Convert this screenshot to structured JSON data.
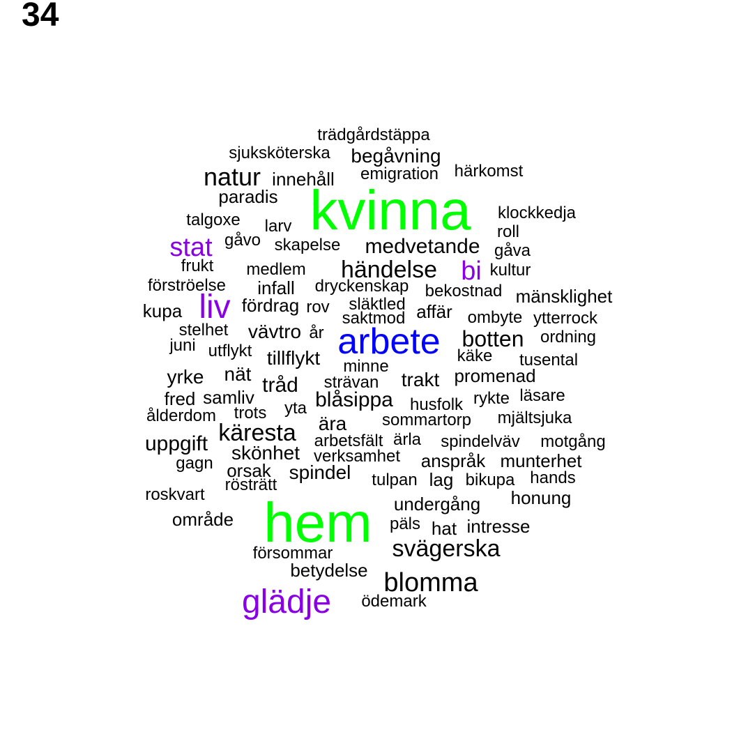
{
  "page_number": "34",
  "colors": {
    "tier1": "#00ff00",
    "tier2": "#0000ff",
    "tier3": "#8a00e6",
    "normal": "#000000"
  },
  "words": [
    {
      "text": "trädgårdstäppa",
      "color": "normal"
    },
    {
      "text": "sjuksköterska",
      "color": "normal"
    },
    {
      "text": "begåvning",
      "color": "normal"
    },
    {
      "text": "natur",
      "color": "normal"
    },
    {
      "text": "innehåll",
      "color": "normal"
    },
    {
      "text": "emigration",
      "color": "normal"
    },
    {
      "text": "härkomst",
      "color": "normal"
    },
    {
      "text": "paradis",
      "color": "normal"
    },
    {
      "text": "kvinna",
      "color": "tier1"
    },
    {
      "text": "klockkedja",
      "color": "normal"
    },
    {
      "text": "talgoxe",
      "color": "normal"
    },
    {
      "text": "larv",
      "color": "normal"
    },
    {
      "text": "roll",
      "color": "normal"
    },
    {
      "text": "stat",
      "color": "tier3"
    },
    {
      "text": "gåvo",
      "color": "normal"
    },
    {
      "text": "skapelse",
      "color": "normal"
    },
    {
      "text": "medvetande",
      "color": "normal"
    },
    {
      "text": "gåva",
      "color": "normal"
    },
    {
      "text": "frukt",
      "color": "normal"
    },
    {
      "text": "medlem",
      "color": "normal"
    },
    {
      "text": "händelse",
      "color": "normal"
    },
    {
      "text": "bi",
      "color": "tier3"
    },
    {
      "text": "kultur",
      "color": "normal"
    },
    {
      "text": "förströelse",
      "color": "normal"
    },
    {
      "text": "infall",
      "color": "normal"
    },
    {
      "text": "dryckenskap",
      "color": "normal"
    },
    {
      "text": "bekostnad",
      "color": "normal"
    },
    {
      "text": "mänsklighet",
      "color": "normal"
    },
    {
      "text": "kupa",
      "color": "normal"
    },
    {
      "text": "liv",
      "color": "tier3"
    },
    {
      "text": "fördrag",
      "color": "normal"
    },
    {
      "text": "rov",
      "color": "normal"
    },
    {
      "text": "släktled",
      "color": "normal"
    },
    {
      "text": "affär",
      "color": "normal"
    },
    {
      "text": "saktmod",
      "color": "normal"
    },
    {
      "text": "ombyte",
      "color": "normal"
    },
    {
      "text": "ytterrock",
      "color": "normal"
    },
    {
      "text": "stelhet",
      "color": "normal"
    },
    {
      "text": "vävtro",
      "color": "normal"
    },
    {
      "text": "år",
      "color": "normal"
    },
    {
      "text": "arbete",
      "color": "tier2"
    },
    {
      "text": "botten",
      "color": "normal"
    },
    {
      "text": "ordning",
      "color": "normal"
    },
    {
      "text": "juni",
      "color": "normal"
    },
    {
      "text": "utflykt",
      "color": "normal"
    },
    {
      "text": "tillflykt",
      "color": "normal"
    },
    {
      "text": "käke",
      "color": "normal"
    },
    {
      "text": "tusental",
      "color": "normal"
    },
    {
      "text": "minne",
      "color": "normal"
    },
    {
      "text": "yrke",
      "color": "normal"
    },
    {
      "text": "nät",
      "color": "normal"
    },
    {
      "text": "tråd",
      "color": "normal"
    },
    {
      "text": "strävan",
      "color": "normal"
    },
    {
      "text": "trakt",
      "color": "normal"
    },
    {
      "text": "promenad",
      "color": "normal"
    },
    {
      "text": "fred",
      "color": "normal"
    },
    {
      "text": "samliv",
      "color": "normal"
    },
    {
      "text": "blåsippa",
      "color": "normal"
    },
    {
      "text": "rykte",
      "color": "normal"
    },
    {
      "text": "läsare",
      "color": "normal"
    },
    {
      "text": "yta",
      "color": "normal"
    },
    {
      "text": "husfolk",
      "color": "normal"
    },
    {
      "text": "ålderdom",
      "color": "normal"
    },
    {
      "text": "trots",
      "color": "normal"
    },
    {
      "text": "ära",
      "color": "normal"
    },
    {
      "text": "sommartorp",
      "color": "normal"
    },
    {
      "text": "mjältsjuka",
      "color": "normal"
    },
    {
      "text": "käresta",
      "color": "normal"
    },
    {
      "text": "uppgift",
      "color": "normal"
    },
    {
      "text": "arbetsfält",
      "color": "normal"
    },
    {
      "text": "ärla",
      "color": "normal"
    },
    {
      "text": "spindelväv",
      "color": "normal"
    },
    {
      "text": "motgång",
      "color": "normal"
    },
    {
      "text": "skönhet",
      "color": "normal"
    },
    {
      "text": "verksamhet",
      "color": "normal"
    },
    {
      "text": "gagn",
      "color": "normal"
    },
    {
      "text": "anspråk",
      "color": "normal"
    },
    {
      "text": "munterhet",
      "color": "normal"
    },
    {
      "text": "orsak",
      "color": "normal"
    },
    {
      "text": "spindel",
      "color": "normal"
    },
    {
      "text": "hands",
      "color": "normal"
    },
    {
      "text": "rösträtt",
      "color": "normal"
    },
    {
      "text": "tulpan",
      "color": "normal"
    },
    {
      "text": "lag",
      "color": "normal"
    },
    {
      "text": "bikupa",
      "color": "normal"
    },
    {
      "text": "roskvart",
      "color": "normal"
    },
    {
      "text": "honung",
      "color": "normal"
    },
    {
      "text": "hem",
      "color": "tier1"
    },
    {
      "text": "undergång",
      "color": "normal"
    },
    {
      "text": "område",
      "color": "normal"
    },
    {
      "text": "päls",
      "color": "normal"
    },
    {
      "text": "hat",
      "color": "normal"
    },
    {
      "text": "intresse",
      "color": "normal"
    },
    {
      "text": "svägerska",
      "color": "normal"
    },
    {
      "text": "försommar",
      "color": "normal"
    },
    {
      "text": "betydelse",
      "color": "normal"
    },
    {
      "text": "blomma",
      "color": "normal"
    },
    {
      "text": "glädje",
      "color": "tier3"
    },
    {
      "text": "ödemark",
      "color": "normal"
    }
  ]
}
